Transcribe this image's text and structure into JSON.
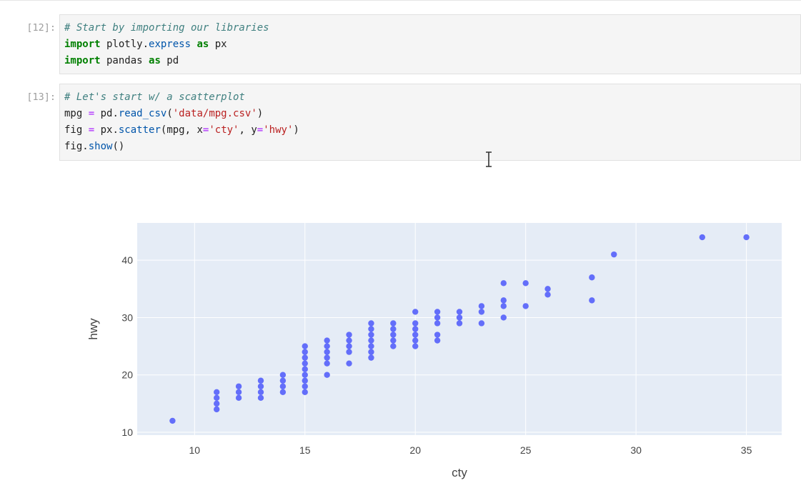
{
  "notebook": {
    "cells": [
      {
        "prompt": "[12]:",
        "lines": [
          [
            {
              "t": "# Start by importing our libraries",
              "c": "cm"
            }
          ],
          [
            {
              "t": "import",
              "c": "kw"
            },
            {
              "t": " plotly.",
              "c": ""
            },
            {
              "t": "express",
              "c": "fn"
            },
            {
              "t": " ",
              "c": ""
            },
            {
              "t": "as",
              "c": "kw"
            },
            {
              "t": " px",
              "c": ""
            }
          ],
          [
            {
              "t": "import",
              "c": "kw"
            },
            {
              "t": " pandas ",
              "c": ""
            },
            {
              "t": "as",
              "c": "kw"
            },
            {
              "t": " pd",
              "c": ""
            }
          ]
        ]
      },
      {
        "prompt": "[13]:",
        "lines": [
          [
            {
              "t": "# Let's start w/ a scatterplot",
              "c": "cm"
            }
          ],
          [
            {
              "t": "mpg ",
              "c": ""
            },
            {
              "t": "=",
              "c": "op"
            },
            {
              "t": " pd.",
              "c": ""
            },
            {
              "t": "read_csv",
              "c": "fn"
            },
            {
              "t": "(",
              "c": ""
            },
            {
              "t": "'data/mpg.csv'",
              "c": "str"
            },
            {
              "t": ")",
              "c": ""
            }
          ],
          [
            {
              "t": "fig ",
              "c": ""
            },
            {
              "t": "=",
              "c": "op"
            },
            {
              "t": " px.",
              "c": ""
            },
            {
              "t": "scatter",
              "c": "fn"
            },
            {
              "t": "(mpg, x",
              "c": ""
            },
            {
              "t": "=",
              "c": "op"
            },
            {
              "t": "'cty'",
              "c": "str"
            },
            {
              "t": ", y",
              "c": ""
            },
            {
              "t": "=",
              "c": "op"
            },
            {
              "t": "'hwy'",
              "c": "str"
            },
            {
              "t": ")",
              "c": ""
            }
          ],
          [
            {
              "t": "fig.",
              "c": ""
            },
            {
              "t": "show",
              "c": "fn"
            },
            {
              "t": "()",
              "c": ""
            }
          ]
        ]
      }
    ]
  },
  "chart_data": {
    "type": "scatter",
    "xlabel": "cty",
    "ylabel": "hwy",
    "xlim": [
      7.4,
      36.6
    ],
    "ylim": [
      9.5,
      46.5
    ],
    "xticks": [
      10,
      15,
      20,
      25,
      30,
      35
    ],
    "yticks": [
      10,
      20,
      30,
      40
    ],
    "grid": true,
    "colors": {
      "marker": "#636efa",
      "plot_bg": "#e5ecf6",
      "grid": "#ffffff",
      "text": "#444444"
    },
    "points": [
      [
        9,
        12
      ],
      [
        11,
        14
      ],
      [
        11,
        15
      ],
      [
        11,
        16
      ],
      [
        11,
        17
      ],
      [
        12,
        16
      ],
      [
        12,
        17
      ],
      [
        12,
        18
      ],
      [
        13,
        16
      ],
      [
        13,
        17
      ],
      [
        13,
        18
      ],
      [
        13,
        19
      ],
      [
        14,
        17
      ],
      [
        14,
        18
      ],
      [
        14,
        19
      ],
      [
        14,
        20
      ],
      [
        15,
        17
      ],
      [
        15,
        18
      ],
      [
        15,
        19
      ],
      [
        15,
        20
      ],
      [
        15,
        21
      ],
      [
        15,
        22
      ],
      [
        15,
        23
      ],
      [
        15,
        24
      ],
      [
        15,
        25
      ],
      [
        16,
        20
      ],
      [
        16,
        22
      ],
      [
        16,
        23
      ],
      [
        16,
        24
      ],
      [
        16,
        25
      ],
      [
        16,
        26
      ],
      [
        17,
        22
      ],
      [
        17,
        24
      ],
      [
        17,
        25
      ],
      [
        17,
        26
      ],
      [
        17,
        27
      ],
      [
        18,
        23
      ],
      [
        18,
        24
      ],
      [
        18,
        25
      ],
      [
        18,
        26
      ],
      [
        18,
        27
      ],
      [
        18,
        28
      ],
      [
        18,
        29
      ],
      [
        19,
        25
      ],
      [
        19,
        26
      ],
      [
        19,
        27
      ],
      [
        19,
        28
      ],
      [
        19,
        29
      ],
      [
        20,
        25
      ],
      [
        20,
        26
      ],
      [
        20,
        27
      ],
      [
        20,
        28
      ],
      [
        20,
        29
      ],
      [
        20,
        31
      ],
      [
        21,
        26
      ],
      [
        21,
        27
      ],
      [
        21,
        29
      ],
      [
        21,
        30
      ],
      [
        21,
        31
      ],
      [
        22,
        29
      ],
      [
        22,
        30
      ],
      [
        22,
        31
      ],
      [
        23,
        29
      ],
      [
        23,
        31
      ],
      [
        23,
        32
      ],
      [
        24,
        30
      ],
      [
        24,
        32
      ],
      [
        24,
        33
      ],
      [
        24,
        36
      ],
      [
        25,
        32
      ],
      [
        25,
        36
      ],
      [
        26,
        34
      ],
      [
        26,
        35
      ],
      [
        28,
        33
      ],
      [
        28,
        37
      ],
      [
        29,
        41
      ],
      [
        33,
        44
      ],
      [
        35,
        44
      ]
    ]
  }
}
